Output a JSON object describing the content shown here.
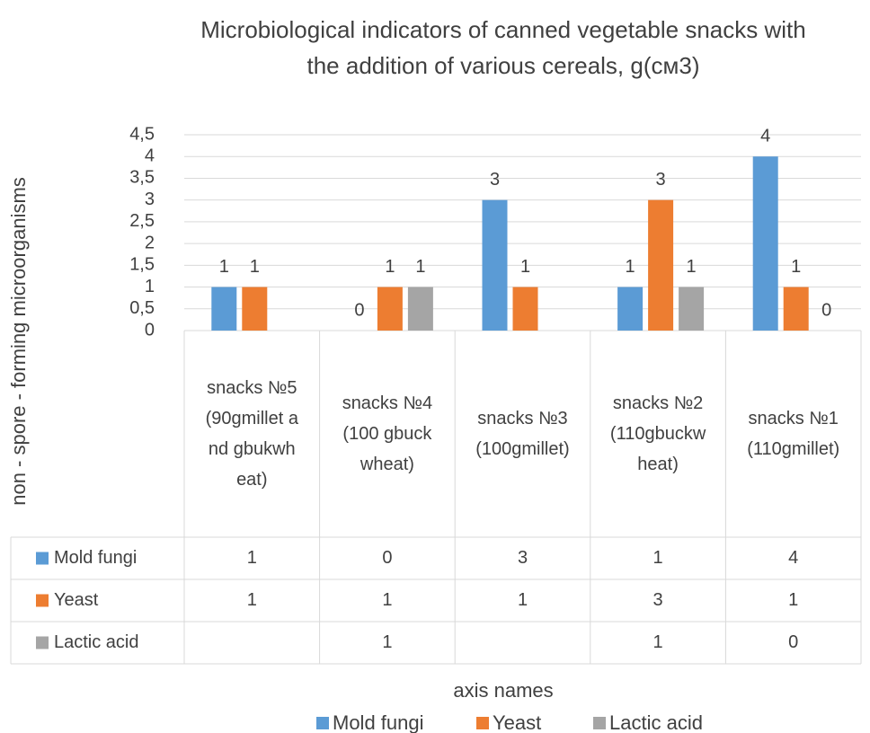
{
  "chart_data": {
    "type": "bar",
    "title": "Microbiological indicators of canned vegetable snacks with the addition of various cereals, g(см3)",
    "x_label": "axis names",
    "y_label": "non - spore - forming microorganisms",
    "categories": [
      "snacks №5 (90gmillet and gbukwheat)",
      "snacks №4(100 gbuckwheat)",
      "snacks №3 (100gmillet)",
      "snacks №2 (110gbuckwheat)",
      "snacks №1 (110gmillet)"
    ],
    "series": [
      {
        "name": "Mold fungi",
        "color": "#5b9bd5",
        "values": [
          1,
          0,
          3,
          1,
          4
        ]
      },
      {
        "name": "Yeast",
        "color": "#ed7d31",
        "values": [
          1,
          1,
          1,
          3,
          1
        ]
      },
      {
        "name": "Lactic acid",
        "color": "#a5a5a5",
        "values": [
          null,
          1,
          null,
          1,
          0
        ]
      }
    ],
    "ylim": [
      0,
      4.5
    ],
    "yticks": [
      0,
      {
        "value": 0.5,
        "label": "0,5"
      },
      1,
      {
        "value": 1.5,
        "label": "1,5"
      },
      2,
      {
        "value": 2.5,
        "label": "2,5"
      },
      3,
      {
        "value": 3.5,
        "label": "3,5"
      },
      4,
      {
        "value": 4.5,
        "label": "4,5"
      }
    ],
    "grid": true,
    "legend": "bottom"
  }
}
